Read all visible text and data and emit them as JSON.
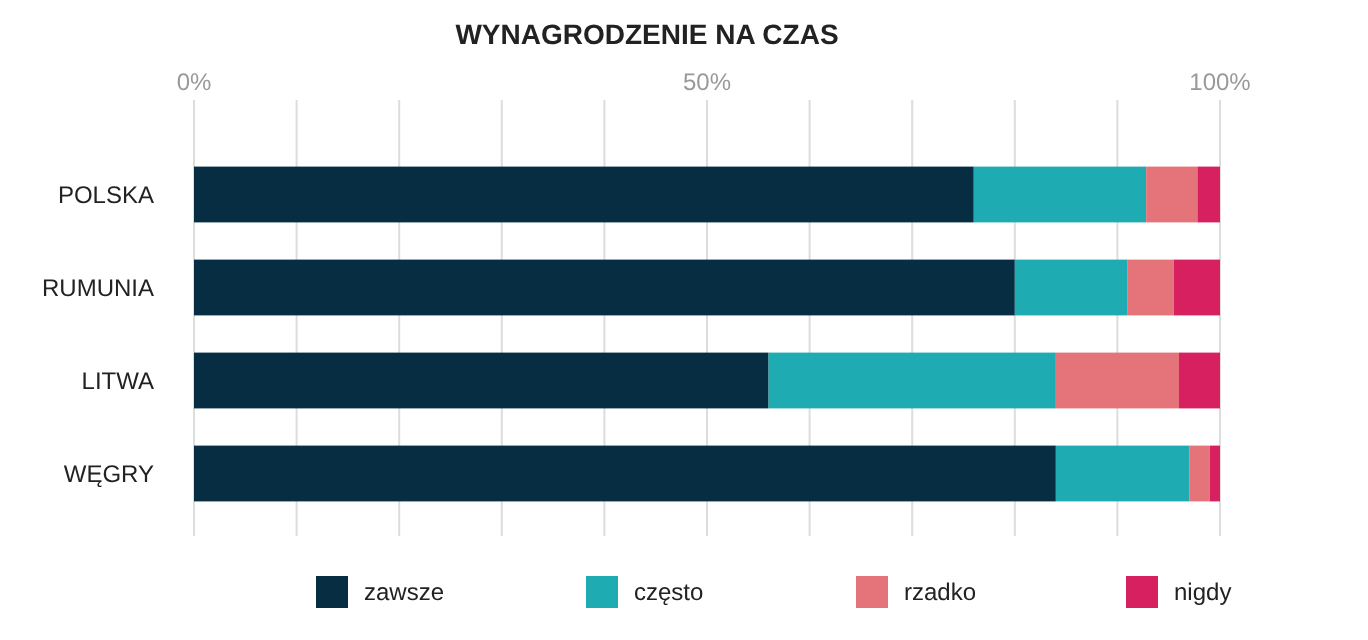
{
  "chart_data": {
    "type": "bar",
    "title": "WYNAGRODZENIE NA CZAS",
    "orientation": "horizontal",
    "stacked": true,
    "categories": [
      "POLSKA",
      "RUMUNIA",
      "LITWA",
      "WĘGRY"
    ],
    "series": [
      {
        "name": "zawsze",
        "color": "#062d42",
        "values": [
          76,
          80,
          56,
          84
        ]
      },
      {
        "name": "często",
        "color": "#1eabb1",
        "values": [
          16.8,
          11,
          28,
          13
        ]
      },
      {
        "name": "rzadko",
        "color": "#e5737a",
        "values": [
          5,
          4.5,
          12,
          2
        ]
      },
      {
        "name": "nigdy",
        "color": "#d6205f",
        "values": [
          2.2,
          4.5,
          4,
          1
        ]
      }
    ],
    "xlim": [
      0,
      100
    ],
    "xticks": [
      {
        "value": 0,
        "label": "0%"
      },
      {
        "value": 10,
        "label": null
      },
      {
        "value": 20,
        "label": null
      },
      {
        "value": 30,
        "label": null
      },
      {
        "value": 40,
        "label": null
      },
      {
        "value": 50,
        "label": "50%"
      },
      {
        "value": 60,
        "label": null
      },
      {
        "value": 70,
        "label": null
      },
      {
        "value": 80,
        "label": null
      },
      {
        "value": 90,
        "label": null
      },
      {
        "value": 100,
        "label": "100%"
      }
    ],
    "grid": "x",
    "legend": "bottom"
  }
}
